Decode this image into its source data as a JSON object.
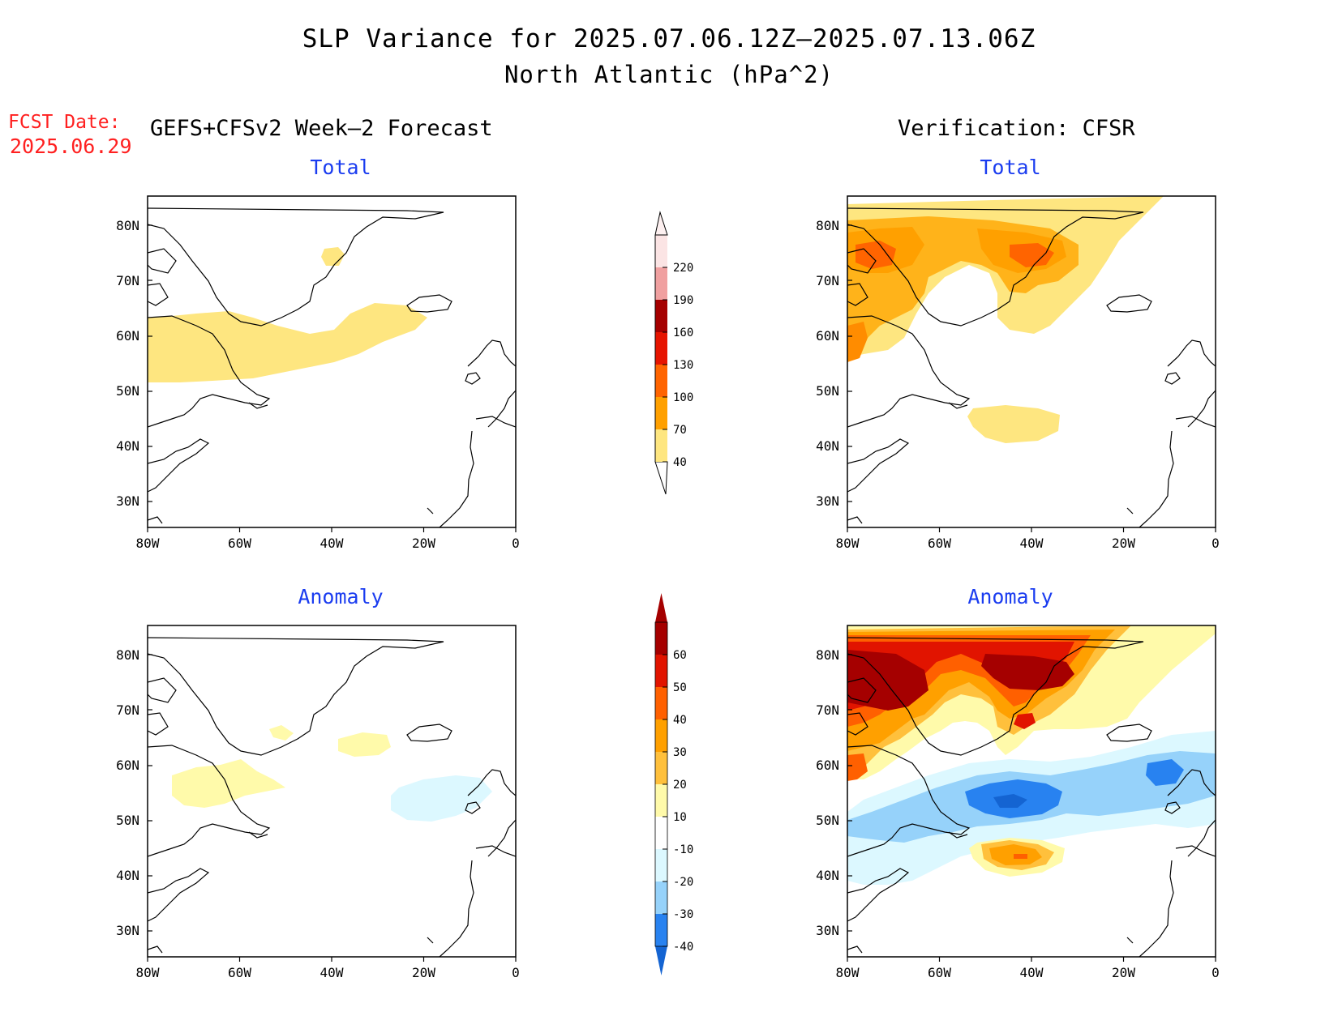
{
  "title": {
    "line1": "SLP Variance for 2025.07.06.12Z–2025.07.13.06Z",
    "line2": "North Atlantic (hPa^2)"
  },
  "forecast": {
    "label": "FCST Date:",
    "date": "2025.06.29"
  },
  "headers": {
    "left": "GEFS+CFSv2 Week–2 Forecast",
    "right": "Verification: CFSR"
  },
  "panels": {
    "forecast_total": "Total",
    "verification_total": "Total",
    "forecast_anomaly": "Anomaly",
    "verification_anomaly": "Anomaly"
  },
  "axes": {
    "lat_labels": [
      "80N",
      "70N",
      "60N",
      "50N",
      "40N",
      "30N"
    ],
    "lon_labels": [
      "80W",
      "60W",
      "40W",
      "20W",
      "0"
    ]
  },
  "colorbars": {
    "total": {
      "levels": [
        "40",
        "70",
        "100",
        "130",
        "160",
        "190",
        "220"
      ],
      "colors": [
        "#fee680",
        "#ffa000",
        "#ff6400",
        "#e61400",
        "#a50000",
        "#f0a0a0",
        "#fbe4e4"
      ]
    },
    "anomaly": {
      "levels": [
        "-40",
        "-30",
        "-20",
        "-10",
        "10",
        "20",
        "30",
        "40",
        "50",
        "60"
      ],
      "colors": [
        "#1464d2",
        "#2882f0",
        "#96d2fa",
        "#dcf8ff",
        "#ffffff",
        "#fffaaa",
        "#ffc03c",
        "#ffa000",
        "#ff6000",
        "#e11400",
        "#a50000"
      ]
    }
  },
  "colors": {
    "title_blue": "#1a3cf0",
    "forecast_red": "#ff2020"
  }
}
